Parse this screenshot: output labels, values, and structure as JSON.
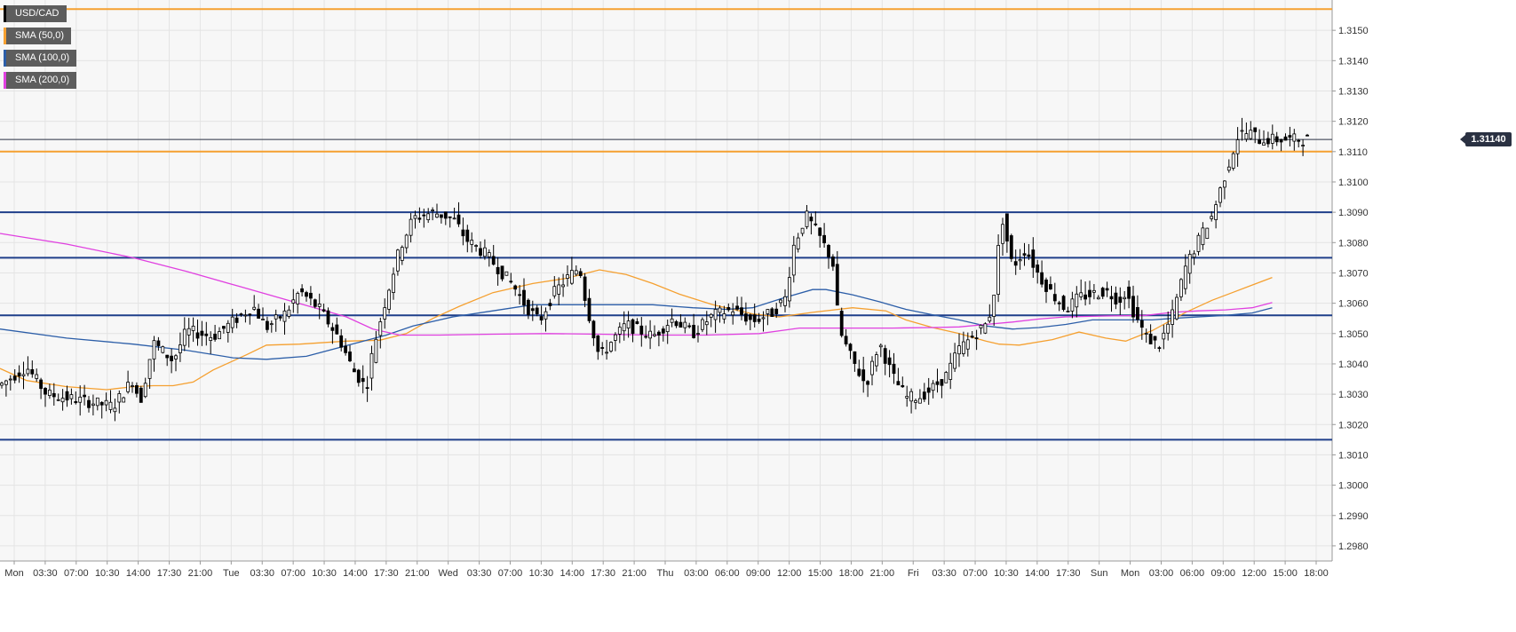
{
  "chart_data": {
    "type": "candlestick",
    "symbol": "USD/CAD",
    "last_price": "1.31140",
    "y_range": [
      1.2975,
      1.316
    ],
    "y_ticks": [
      "1.3150",
      "1.3140",
      "1.3130",
      "1.3120",
      "1.3110",
      "1.3100",
      "1.3090",
      "1.3080",
      "1.3070",
      "1.3060",
      "1.3050",
      "1.3040",
      "1.3030",
      "1.3020",
      "1.3010",
      "1.3000",
      "1.2990",
      "1.2980"
    ],
    "x_labels": [
      "Mon",
      "03:30",
      "07:00",
      "10:30",
      "14:00",
      "17:30",
      "21:00",
      "Tue",
      "03:30",
      "07:00",
      "10:30",
      "14:00",
      "17:30",
      "21:00",
      "Wed",
      "03:30",
      "07:00",
      "10:30",
      "14:00",
      "17:30",
      "21:00",
      "Thu",
      "03:00",
      "06:00",
      "09:00",
      "12:00",
      "15:00",
      "18:00",
      "21:00",
      "Fri",
      "03:30",
      "07:00",
      "10:30",
      "14:00",
      "17:30",
      "Sun",
      "Mon",
      "03:00",
      "06:00",
      "09:00",
      "12:00",
      "15:00",
      "18:00"
    ],
    "horizontal_levels": [
      {
        "price": 1.3157,
        "color": "#f5a030"
      },
      {
        "price": 1.311,
        "color": "#f5a030"
      },
      {
        "price": 1.309,
        "color": "#1f3f8a"
      },
      {
        "price": 1.3075,
        "color": "#1f3f8a"
      },
      {
        "price": 1.3056,
        "color": "#1f3f8a"
      },
      {
        "price": 1.3015,
        "color": "#1f3f8a"
      }
    ],
    "series": [
      {
        "name": "SMA (50,0)",
        "color": "#f5a030",
        "points": [
          [
            0,
            1.30385
          ],
          [
            0.02,
            1.30345
          ],
          [
            0.05,
            1.30325
          ],
          [
            0.08,
            1.30315
          ],
          [
            0.1,
            1.30325
          ],
          [
            0.115,
            1.30328
          ],
          [
            0.13,
            1.30328
          ],
          [
            0.145,
            1.3034
          ],
          [
            0.16,
            1.3038
          ],
          [
            0.185,
            1.3043
          ],
          [
            0.2,
            1.30462
          ],
          [
            0.225,
            1.30465
          ],
          [
            0.26,
            1.30475
          ],
          [
            0.285,
            1.30478
          ],
          [
            0.305,
            1.305
          ],
          [
            0.325,
            1.3055
          ],
          [
            0.345,
            1.3059
          ],
          [
            0.37,
            1.30635
          ],
          [
            0.4,
            1.30665
          ],
          [
            0.425,
            1.30682
          ],
          [
            0.45,
            1.3071
          ],
          [
            0.47,
            1.30695
          ],
          [
            0.49,
            1.30665
          ],
          [
            0.51,
            1.3063
          ],
          [
            0.535,
            1.30595
          ],
          [
            0.565,
            1.30565
          ],
          [
            0.585,
            1.30555
          ],
          [
            0.61,
            1.3057
          ],
          [
            0.64,
            1.30585
          ],
          [
            0.665,
            1.30575
          ],
          [
            0.68,
            1.30545
          ],
          [
            0.7,
            1.3052
          ],
          [
            0.72,
            1.305
          ],
          [
            0.74,
            1.30475
          ],
          [
            0.75,
            1.30465
          ],
          [
            0.765,
            1.30462
          ],
          [
            0.79,
            1.3048
          ],
          [
            0.81,
            1.30505
          ],
          [
            0.83,
            1.30485
          ],
          [
            0.845,
            1.30475
          ],
          [
            0.865,
            1.3051
          ],
          [
            0.89,
            1.3057
          ],
          [
            0.91,
            1.3061
          ],
          [
            0.925,
            1.30635
          ],
          [
            0.94,
            1.3066
          ],
          [
            0.955,
            1.30685
          ]
        ]
      },
      {
        "name": "SMA (100,0)",
        "color": "#2c5ea8",
        "points": [
          [
            0,
            1.30515
          ],
          [
            0.05,
            1.30485
          ],
          [
            0.1,
            1.30465
          ],
          [
            0.14,
            1.30445
          ],
          [
            0.175,
            1.3042
          ],
          [
            0.2,
            1.30415
          ],
          [
            0.23,
            1.30425
          ],
          [
            0.26,
            1.3046
          ],
          [
            0.29,
            1.30495
          ],
          [
            0.31,
            1.30525
          ],
          [
            0.34,
            1.30555
          ],
          [
            0.37,
            1.30575
          ],
          [
            0.4,
            1.30595
          ],
          [
            0.43,
            1.30595
          ],
          [
            0.46,
            1.30595
          ],
          [
            0.49,
            1.30595
          ],
          [
            0.52,
            1.30585
          ],
          [
            0.545,
            1.3058
          ],
          [
            0.565,
            1.30585
          ],
          [
            0.59,
            1.3062
          ],
          [
            0.61,
            1.30645
          ],
          [
            0.62,
            1.30645
          ],
          [
            0.64,
            1.30628
          ],
          [
            0.66,
            1.30605
          ],
          [
            0.68,
            1.3058
          ],
          [
            0.7,
            1.30562
          ],
          [
            0.72,
            1.30545
          ],
          [
            0.74,
            1.30525
          ],
          [
            0.76,
            1.30515
          ],
          [
            0.78,
            1.3052
          ],
          [
            0.8,
            1.3053
          ],
          [
            0.82,
            1.30545
          ],
          [
            0.845,
            1.30545
          ],
          [
            0.865,
            1.30545
          ],
          [
            0.88,
            1.3055
          ],
          [
            0.9,
            1.30555
          ],
          [
            0.92,
            1.3056
          ],
          [
            0.94,
            1.30568
          ],
          [
            0.955,
            1.30585
          ]
        ]
      },
      {
        "name": "SMA (200,0)",
        "color": "#e040e0",
        "points": [
          [
            0,
            1.3083
          ],
          [
            0.05,
            1.30795
          ],
          [
            0.1,
            1.3075
          ],
          [
            0.14,
            1.30705
          ],
          [
            0.18,
            1.30655
          ],
          [
            0.22,
            1.30605
          ],
          [
            0.26,
            1.30555
          ],
          [
            0.28,
            1.30515
          ],
          [
            0.3,
            1.30495
          ],
          [
            0.33,
            1.30495
          ],
          [
            0.37,
            1.30498
          ],
          [
            0.41,
            1.305
          ],
          [
            0.45,
            1.30498
          ],
          [
            0.49,
            1.30495
          ],
          [
            0.53,
            1.30495
          ],
          [
            0.57,
            1.305
          ],
          [
            0.6,
            1.30518
          ],
          [
            0.63,
            1.30518
          ],
          [
            0.67,
            1.30518
          ],
          [
            0.7,
            1.3052
          ],
          [
            0.72,
            1.30522
          ],
          [
            0.74,
            1.3053
          ],
          [
            0.76,
            1.30538
          ],
          [
            0.78,
            1.30548
          ],
          [
            0.8,
            1.30555
          ],
          [
            0.83,
            1.30558
          ],
          [
            0.86,
            1.3056
          ],
          [
            0.88,
            1.3057
          ],
          [
            0.9,
            1.30575
          ],
          [
            0.92,
            1.30578
          ],
          [
            0.94,
            1.30585
          ],
          [
            0.955,
            1.30602
          ]
        ]
      }
    ],
    "price_path": [
      [
        0,
        1.3033
      ],
      [
        0.02,
        1.3039
      ],
      [
        0.035,
        1.303
      ],
      [
        0.06,
        1.3028
      ],
      [
        0.085,
        1.3026
      ],
      [
        0.1,
        1.3035
      ],
      [
        0.105,
        1.3027
      ],
      [
        0.115,
        1.3047
      ],
      [
        0.13,
        1.3041
      ],
      [
        0.14,
        1.3051
      ],
      [
        0.16,
        1.3049
      ],
      [
        0.175,
        1.3054
      ],
      [
        0.19,
        1.3059
      ],
      [
        0.2,
        1.3052
      ],
      [
        0.215,
        1.3057
      ],
      [
        0.225,
        1.3064
      ],
      [
        0.24,
        1.3058
      ],
      [
        0.255,
        1.3048
      ],
      [
        0.265,
        1.3038
      ],
      [
        0.275,
        1.3032
      ],
      [
        0.28,
        1.3045
      ],
      [
        0.29,
        1.3062
      ],
      [
        0.3,
        1.3078
      ],
      [
        0.31,
        1.3088
      ],
      [
        0.325,
        1.309
      ],
      [
        0.34,
        1.3088
      ],
      [
        0.35,
        1.3081
      ],
      [
        0.365,
        1.3076
      ],
      [
        0.375,
        1.3071
      ],
      [
        0.385,
        1.3066
      ],
      [
        0.395,
        1.3059
      ],
      [
        0.405,
        1.3054
      ],
      [
        0.415,
        1.3063
      ],
      [
        0.425,
        1.3068
      ],
      [
        0.435,
        1.3072
      ],
      [
        0.44,
        1.306
      ],
      [
        0.45,
        1.3042
      ],
      [
        0.46,
        1.3048
      ],
      [
        0.47,
        1.3053
      ],
      [
        0.49,
        1.3049
      ],
      [
        0.505,
        1.3055
      ],
      [
        0.52,
        1.305
      ],
      [
        0.535,
        1.3056
      ],
      [
        0.55,
        1.3058
      ],
      [
        0.565,
        1.3054
      ],
      [
        0.58,
        1.3057
      ],
      [
        0.59,
        1.3062
      ],
      [
        0.595,
        1.3078
      ],
      [
        0.605,
        1.3089
      ],
      [
        0.615,
        1.3082
      ],
      [
        0.625,
        1.3074
      ],
      [
        0.63,
        1.3051
      ],
      [
        0.64,
        1.3041
      ],
      [
        0.65,
        1.3033
      ],
      [
        0.66,
        1.3047
      ],
      [
        0.67,
        1.3036
      ],
      [
        0.68,
        1.3029
      ],
      [
        0.69,
        1.3029
      ],
      [
        0.7,
        1.3032
      ],
      [
        0.71,
        1.3036
      ],
      [
        0.72,
        1.3045
      ],
      [
        0.73,
        1.3049
      ],
      [
        0.74,
        1.3053
      ],
      [
        0.745,
        1.3059
      ],
      [
        0.752,
        1.3089
      ],
      [
        0.76,
        1.3072
      ],
      [
        0.77,
        1.3078
      ],
      [
        0.78,
        1.3069
      ],
      [
        0.79,
        1.3063
      ],
      [
        0.8,
        1.3058
      ],
      [
        0.81,
        1.3062
      ],
      [
        0.82,
        1.3063
      ],
      [
        0.83,
        1.3064
      ],
      [
        0.84,
        1.3061
      ],
      [
        0.845,
        1.3064
      ],
      [
        0.85,
        1.3058
      ],
      [
        0.86,
        1.3049
      ],
      [
        0.87,
        1.3046
      ],
      [
        0.88,
        1.3056
      ],
      [
        0.89,
        1.3072
      ],
      [
        0.9,
        1.3081
      ],
      [
        0.91,
        1.3089
      ],
      [
        0.92,
        1.3103
      ],
      [
        0.93,
        1.3116
      ],
      [
        0.94,
        1.3116
      ],
      [
        0.945,
        1.3114
      ]
    ]
  }
}
